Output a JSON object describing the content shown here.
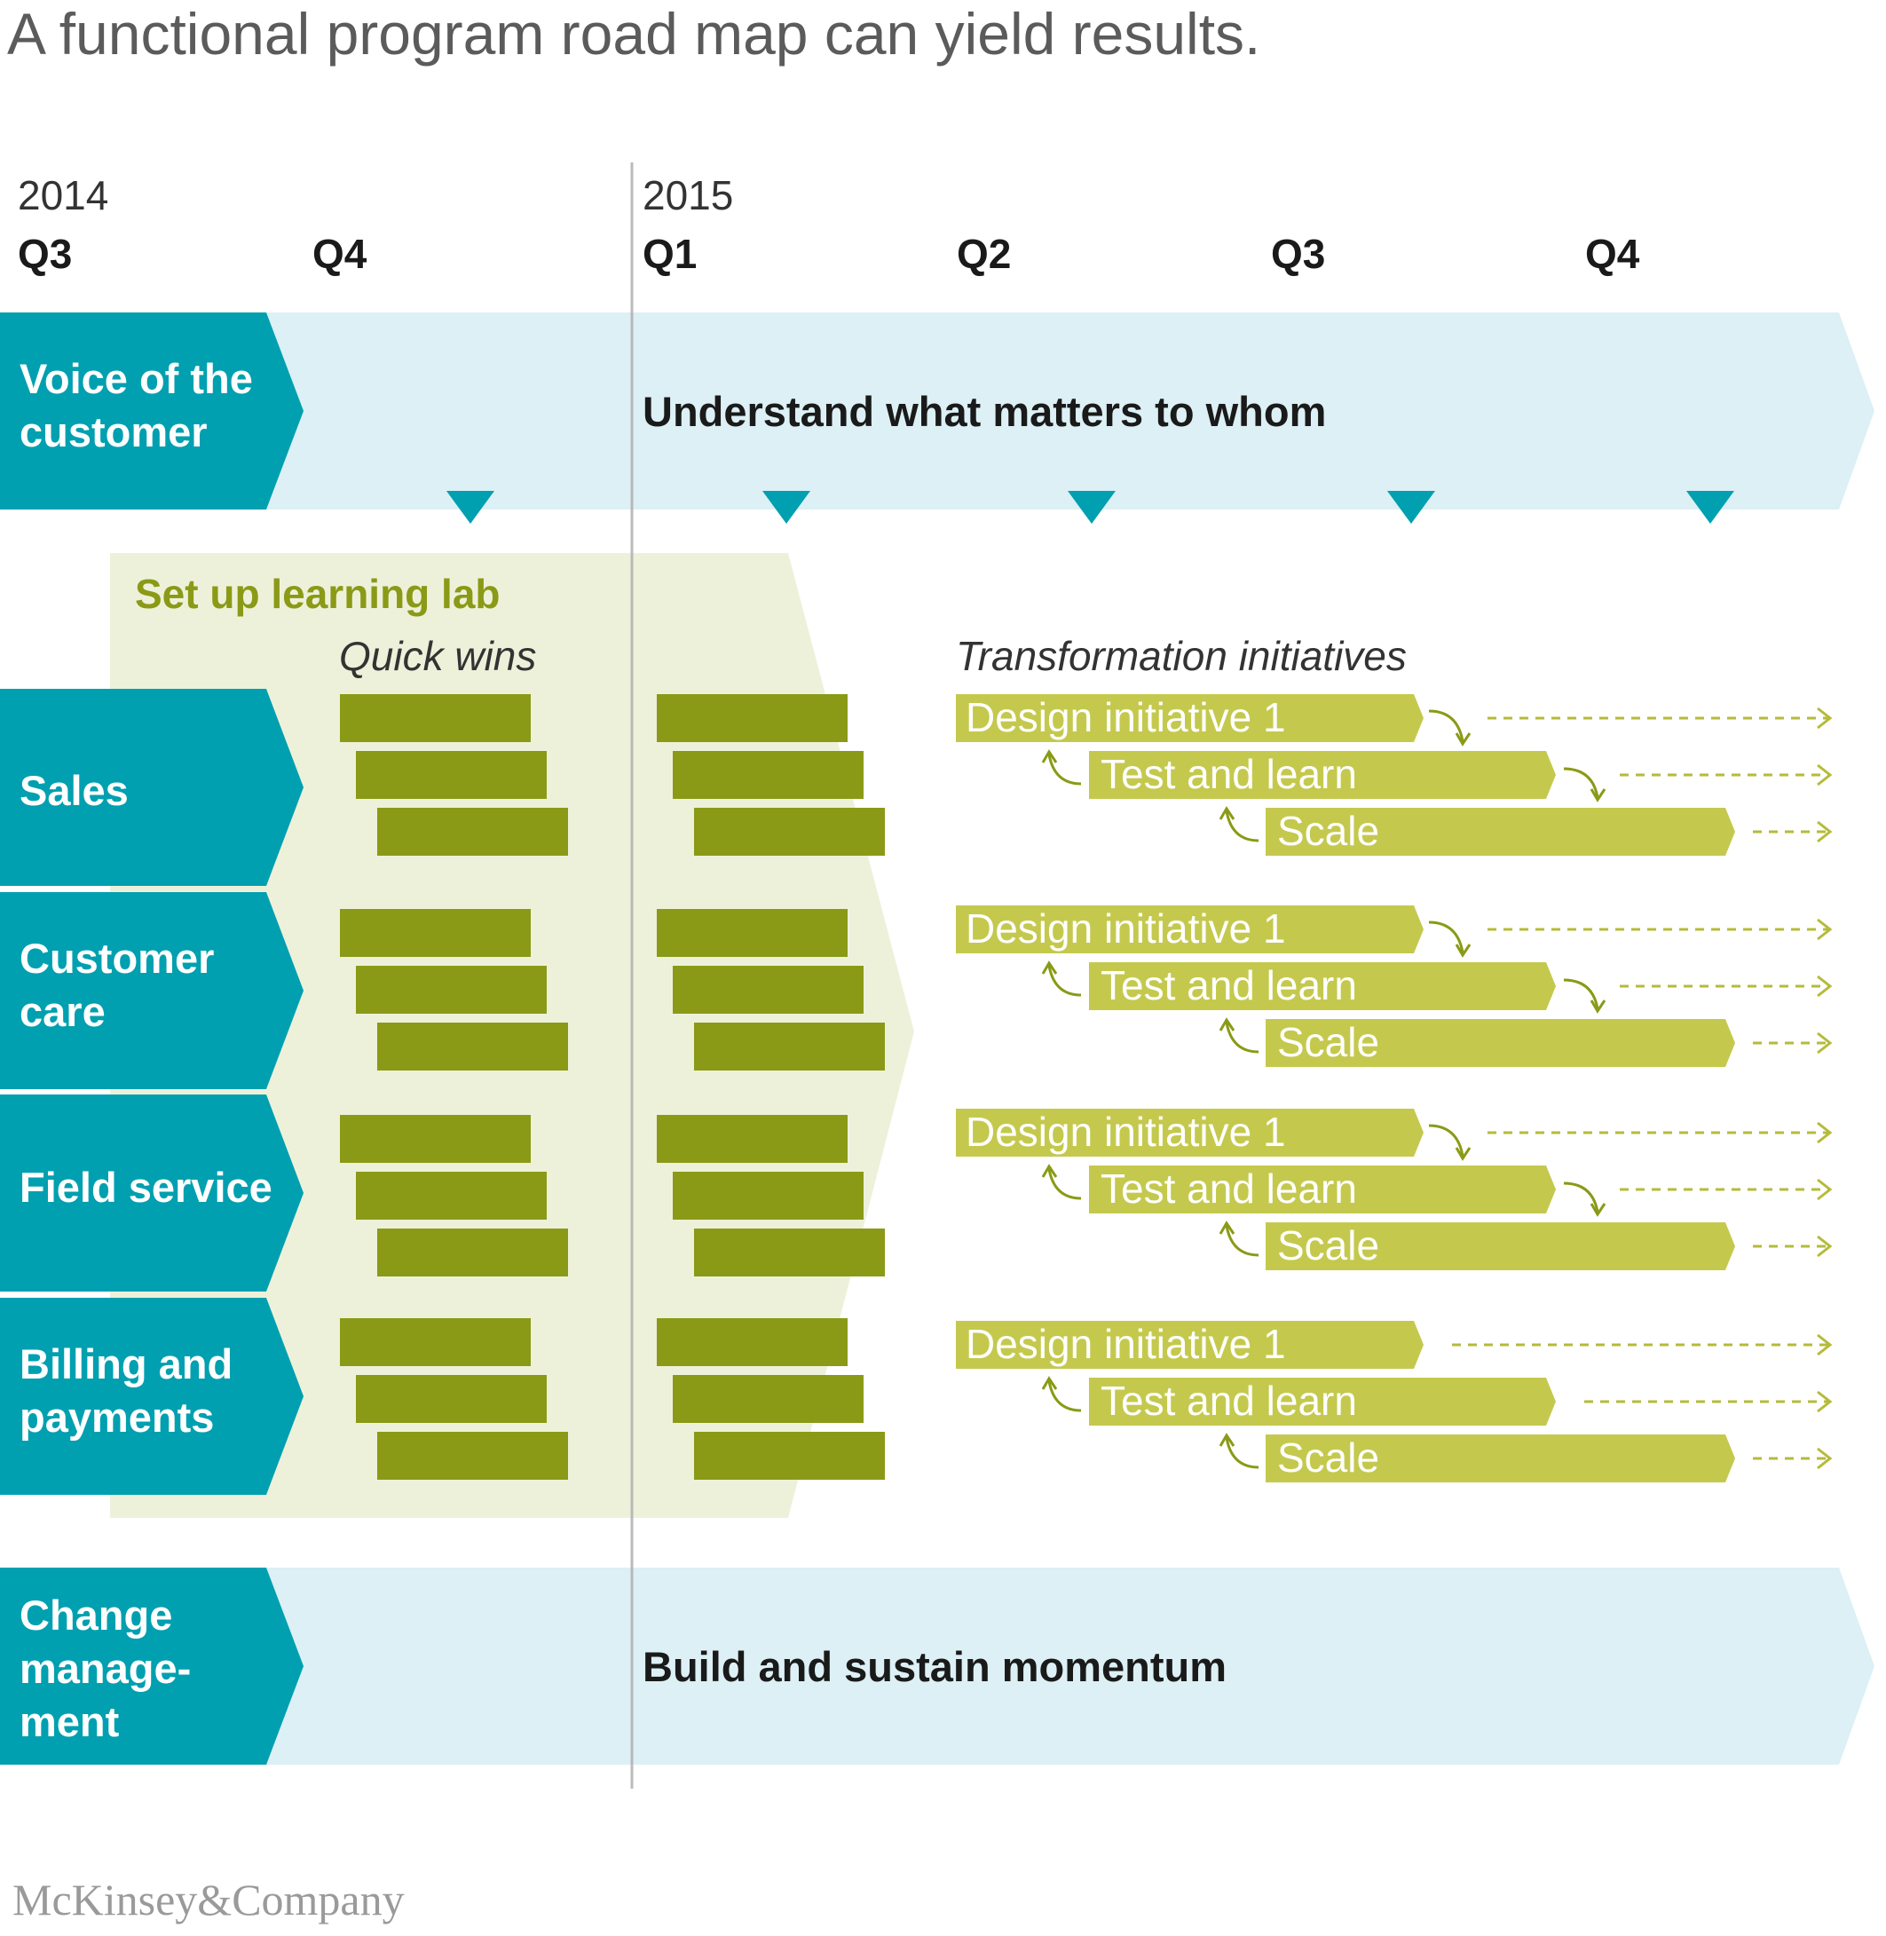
{
  "title": "A functional program road map can yield results.",
  "timeline": {
    "years": [
      "2014",
      "2015"
    ],
    "quarters": [
      "Q3",
      "Q4",
      "Q1",
      "Q2",
      "Q3",
      "Q4"
    ]
  },
  "voice_of_customer": {
    "label_lines": [
      "Voice of the",
      "customer"
    ],
    "band_text": "Understand what matters to whom"
  },
  "learning_lab": {
    "title": "Set up learning lab",
    "quick_wins": "Quick wins"
  },
  "transformation_title": "Transformation initiatives",
  "functions": [
    {
      "label_lines": [
        "Sales"
      ]
    },
    {
      "label_lines": [
        "Customer",
        "care"
      ]
    },
    {
      "label_lines": [
        "Field service"
      ]
    },
    {
      "label_lines": [
        "Billing and",
        "payments"
      ]
    }
  ],
  "phases": [
    "Design initiative 1",
    "Test and learn",
    "Scale"
  ],
  "change_management": {
    "label_lines": [
      "Change",
      "manage-",
      "ment"
    ],
    "band_text": "Build and sustain momentum"
  },
  "logo": "McKinsey&Company",
  "colors": {
    "teal": "#00a0b0",
    "light_blue": "#dcf0f5",
    "lab_bg": "#eef1da",
    "olive": "#8a9a16",
    "lime": "#c4c94e",
    "dark_text": "#1a1a1a",
    "gray_text": "#333333"
  }
}
